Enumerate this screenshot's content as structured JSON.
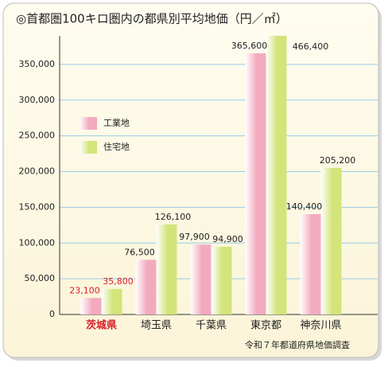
{
  "chart_data": {
    "type": "bar",
    "title": "◎首都圏100キロ圏内の都県別平均地価（円／㎡）",
    "categories": [
      "茨城県",
      "埼玉県",
      "千葉県",
      "東京都",
      "神奈川県"
    ],
    "series": [
      {
        "name": "工業地",
        "color": "#f2aabf",
        "values": [
          23100,
          76500,
          97900,
          365600,
          140400
        ],
        "value_labels": [
          "23,100",
          "76,500",
          "97,900",
          "365,600",
          "140,400"
        ]
      },
      {
        "name": "住宅地",
        "color": "#d3e47a",
        "values": [
          35800,
          126100,
          94900,
          466400,
          205200
        ],
        "value_labels": [
          "35,800",
          "126,100",
          "94,900",
          "466,400",
          "205,200"
        ]
      }
    ],
    "ylim": [
      0,
      390000
    ],
    "yticks": [
      0,
      {
        "value": 50000,
        "label": "50,000"
      },
      {
        "value": 100000,
        "label": "100,000"
      },
      {
        "value": 150000,
        "label": "150,000"
      },
      {
        "value": 200000,
        "label": "200,000"
      },
      {
        "value": 250000,
        "label": "250,000"
      },
      {
        "value": 300000,
        "label": "300,000"
      },
      {
        "value": 350000,
        "label": "350,000"
      }
    ],
    "grid": true,
    "legend": "upper left",
    "highlight": {
      "category": 0,
      "color": "#d8202a"
    },
    "source": "令和７年都道府県地価調査"
  }
}
